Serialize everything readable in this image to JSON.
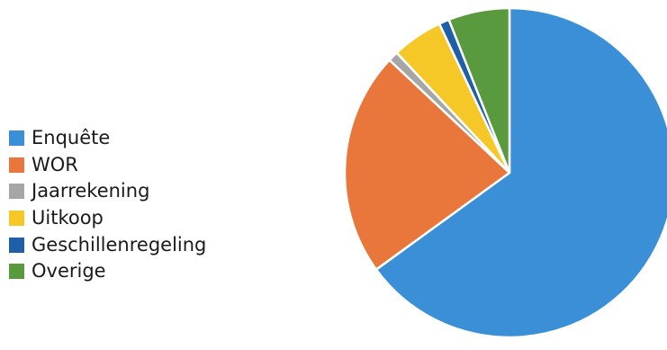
{
  "chart_data": {
    "type": "pie",
    "title": "",
    "legend_position": "left",
    "start": "12 o'clock, clockwise",
    "slices": [
      {
        "label": "Enquête",
        "value": 65,
        "color": "#3b8fd6"
      },
      {
        "label": "WOR",
        "value": 22,
        "color": "#e9773b"
      },
      {
        "label": "Jaarrekening",
        "value": 1,
        "color": "#a6a6a6"
      },
      {
        "label": "Uitkoop",
        "value": 5,
        "color": "#f5c727"
      },
      {
        "label": "Geschillenregeling",
        "value": 1,
        "color": "#1e5fa8"
      },
      {
        "label": "Overige",
        "value": 6,
        "color": "#5a9a3e"
      }
    ]
  }
}
